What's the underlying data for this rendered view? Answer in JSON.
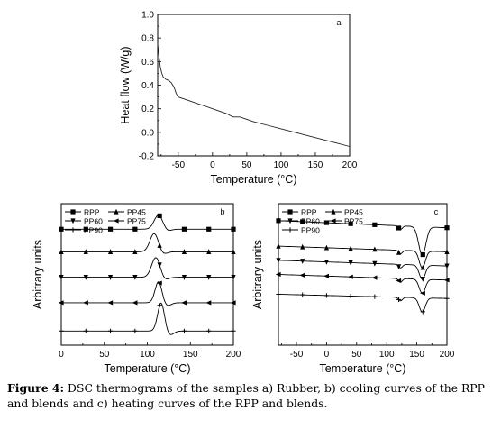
{
  "chart_data": [
    {
      "type": "line",
      "panel_label": "a",
      "xlabel": "Temperature (°C)",
      "ylabel": "Heat flow (W/g)",
      "xlim": [
        -80,
        200
      ],
      "ylim": [
        -0.2,
        1.0
      ],
      "x_ticks": [
        "-50",
        "0",
        "50",
        "100",
        "150",
        "200"
      ],
      "y_ticks": [
        "-0.2",
        "0.0",
        "0.2",
        "0.4",
        "0.6",
        "0.8",
        "1.0"
      ],
      "legend": null,
      "series": [
        {
          "x": [
            -80,
            -78,
            -76,
            -74,
            -72,
            -68,
            -64,
            -60,
            -56,
            -53,
            -50,
            -45,
            -40,
            -30,
            -20,
            -10,
            0,
            10,
            20,
            25,
            30,
            40,
            50,
            60,
            80,
            100,
            120,
            140,
            160,
            180,
            200
          ],
          "y": [
            0.75,
            0.64,
            0.55,
            0.5,
            0.47,
            0.45,
            0.44,
            0.42,
            0.38,
            0.33,
            0.3,
            0.29,
            0.28,
            0.26,
            0.24,
            0.22,
            0.2,
            0.18,
            0.16,
            0.145,
            0.13,
            0.13,
            0.11,
            0.09,
            0.06,
            0.03,
            0.0,
            -0.03,
            -0.06,
            -0.09,
            -0.12
          ]
        }
      ]
    },
    {
      "type": "line",
      "panel_label": "b",
      "xlabel": "Temperature (°C)",
      "ylabel": "Arbitrary units",
      "xlim": [
        0,
        200
      ],
      "x_ticks": [
        "0",
        "50",
        "100",
        "150",
        "200"
      ],
      "legend": "top-left",
      "series": [
        {
          "name": "RPP",
          "marker": "square",
          "offset": 0.82,
          "peak": 113,
          "height": 0.1,
          "width": 5,
          "drift": 0.0
        },
        {
          "name": "PP45",
          "marker": "triangle-up",
          "offset": 0.66,
          "peak": 108,
          "height": 0.13,
          "width": 5,
          "drift": 0.0
        },
        {
          "name": "PP60",
          "marker": "triangle-down",
          "offset": 0.48,
          "peak": 110,
          "height": 0.14,
          "width": 5,
          "drift": 0.0
        },
        {
          "name": "PP75",
          "marker": "triangle-left",
          "offset": 0.3,
          "peak": 113,
          "height": 0.15,
          "width": 4,
          "drift": 0.0
        },
        {
          "name": "PP90",
          "marker": "plus",
          "offset": 0.1,
          "peak": 116,
          "height": 0.2,
          "width": 4,
          "drift": 0.0
        }
      ]
    },
    {
      "type": "line",
      "panel_label": "c",
      "xlabel": "Temperature (°C)",
      "ylabel": "Arbitrary units",
      "xlim": [
        -80,
        200
      ],
      "x_ticks": [
        "-50",
        "0",
        "50",
        "100",
        "150",
        "200"
      ],
      "legend": "top-left",
      "series": [
        {
          "name": "RPP",
          "marker": "square",
          "offset": 0.83,
          "peak": 159,
          "height": 0.2,
          "width": 6,
          "drift": 0.05
        },
        {
          "name": "PP45",
          "marker": "triangle-up",
          "offset": 0.66,
          "peak": 159,
          "height": 0.12,
          "width": 5,
          "drift": 0.04
        },
        {
          "name": "PP60",
          "marker": "triangle-down",
          "offset": 0.56,
          "peak": 159,
          "height": 0.1,
          "width": 5,
          "drift": 0.04
        },
        {
          "name": "PP75",
          "marker": "triangle-left",
          "offset": 0.46,
          "peak": 159,
          "height": 0.1,
          "width": 5,
          "drift": 0.04
        },
        {
          "name": "PP90",
          "marker": "plus",
          "offset": 0.33,
          "peak": 159,
          "height": 0.1,
          "width": 5,
          "drift": 0.03
        }
      ]
    }
  ],
  "caption": {
    "lead": "Figure 4:",
    "text": " DSC thermograms of the samples a) Rubber, b) cooling curves of the RPP and blends and c) heating curves of the RPP and blends."
  }
}
